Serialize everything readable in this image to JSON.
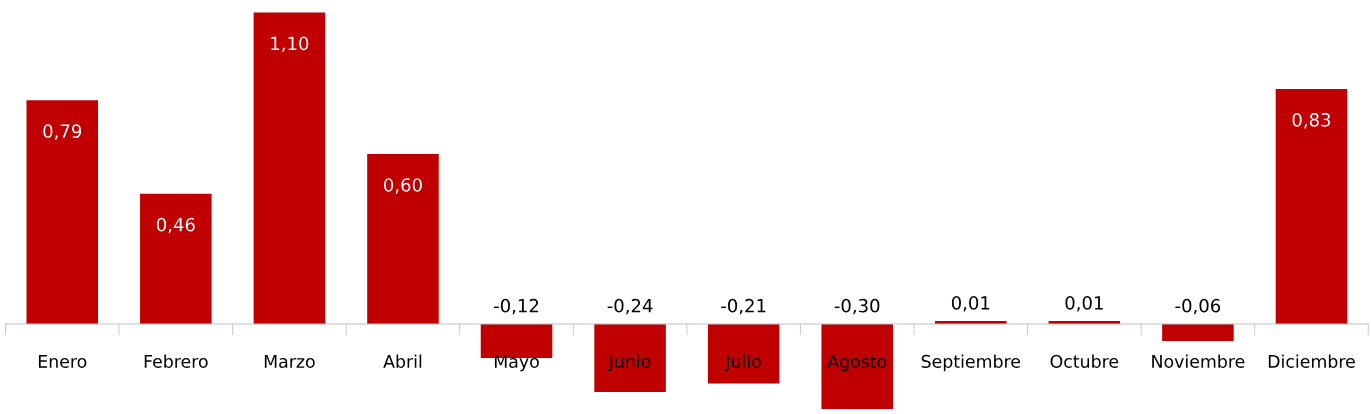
{
  "chart_data": {
    "type": "bar",
    "categories": [
      "Enero",
      "Febrero",
      "Marzo",
      "Abril",
      "Mayo",
      "Junio",
      "Julio",
      "Agosto",
      "Septiembre",
      "Octubre",
      "Noviembre",
      "Diciembre"
    ],
    "values": [
      0.79,
      0.46,
      1.1,
      0.6,
      -0.12,
      -0.24,
      -0.21,
      -0.3,
      0.01,
      0.01,
      -0.06,
      0.83
    ],
    "value_labels": [
      "0,79",
      "0,46",
      "1,10",
      "0,60",
      "-0,12",
      "-0,24",
      "-0,21",
      "-0,30",
      "0,01",
      "0,01",
      "-0,06",
      "0,83"
    ],
    "color": "#c00000",
    "grid": false,
    "legend": false
  }
}
